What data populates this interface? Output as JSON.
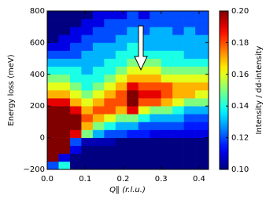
{
  "chart_data": {
    "type": "heatmap",
    "xlabel": "Q∥ (r.l.u.)",
    "ylabel": "Energy loss (meV)",
    "colorbar_label": "Intensity / dd-intensity",
    "colormap": "jet",
    "xlim": [
      0,
      0.425
    ],
    "ylim": [
      -200,
      800
    ],
    "xticks": [
      {
        "value": 0,
        "label": "0.0"
      },
      0.1,
      0.2,
      0.3,
      0.4
    ],
    "yticks": [
      {
        "value": -200,
        "label": "−200"
      },
      0,
      200,
      400,
      600,
      800
    ],
    "clim": [
      0.1,
      0.2
    ],
    "cticks": [
      {
        "value": 0.1,
        "label": "0.10"
      },
      0.12,
      0.14,
      0.16,
      0.18,
      {
        "value": 0.2,
        "label": "0.20"
      }
    ],
    "x_edges": [
      0,
      0.03,
      0.06,
      0.09,
      0.12,
      0.15,
      0.18,
      0.21,
      0.24,
      0.27,
      0.3,
      0.33,
      0.36,
      0.39,
      0.425
    ],
    "y_edges": [
      -200,
      -150,
      -100,
      -50,
      0,
      50,
      100,
      150,
      200,
      250,
      300,
      350,
      400,
      450,
      500,
      550,
      600,
      650,
      700,
      750,
      800
    ],
    "z": [
      [
        0.12,
        0.14,
        0.1,
        0.1,
        0.1,
        0.1,
        0.1,
        0.1,
        0.1,
        0.1,
        0.1,
        0.1,
        0.1,
        0.1
      ],
      [
        0.2,
        0.11,
        0.1,
        0.1,
        0.1,
        0.1,
        0.1,
        0.1,
        0.1,
        0.1,
        0.1,
        0.1,
        0.1,
        0.1
      ],
      [
        0.2,
        0.2,
        0.11,
        0.1,
        0.1,
        0.1,
        0.1,
        0.1,
        0.1,
        0.1,
        0.1,
        0.1,
        0.1,
        0.1
      ],
      [
        0.2,
        0.2,
        0.12,
        0.105,
        0.105,
        0.105,
        0.1,
        0.1,
        0.1,
        0.1,
        0.1,
        0.1,
        0.1,
        0.1
      ],
      [
        0.2,
        0.2,
        0.19,
        0.15,
        0.13,
        0.12,
        0.12,
        0.115,
        0.115,
        0.11,
        0.11,
        0.11,
        0.11,
        0.11
      ],
      [
        0.2,
        0.2,
        0.2,
        0.17,
        0.15,
        0.14,
        0.13,
        0.13,
        0.12,
        0.12,
        0.12,
        0.12,
        0.115,
        0.115
      ],
      [
        0.2,
        0.2,
        0.2,
        0.18,
        0.17,
        0.16,
        0.15,
        0.15,
        0.14,
        0.13,
        0.13,
        0.13,
        0.12,
        0.12
      ],
      [
        0.2,
        0.2,
        0.19,
        0.17,
        0.18,
        0.18,
        0.17,
        0.19,
        0.16,
        0.15,
        0.15,
        0.14,
        0.13,
        0.13
      ],
      [
        0.19,
        0.19,
        0.17,
        0.16,
        0.17,
        0.18,
        0.18,
        0.2,
        0.18,
        0.18,
        0.17,
        0.16,
        0.15,
        0.15
      ],
      [
        0.17,
        0.17,
        0.16,
        0.15,
        0.16,
        0.17,
        0.18,
        0.2,
        0.19,
        0.19,
        0.18,
        0.17,
        0.17,
        0.16
      ],
      [
        0.16,
        0.16,
        0.15,
        0.14,
        0.15,
        0.16,
        0.17,
        0.19,
        0.18,
        0.18,
        0.18,
        0.17,
        0.17,
        0.17
      ],
      [
        0.15,
        0.15,
        0.14,
        0.14,
        0.14,
        0.15,
        0.16,
        0.17,
        0.17,
        0.17,
        0.16,
        0.16,
        0.16,
        0.16
      ],
      [
        0.14,
        0.14,
        0.14,
        0.13,
        0.14,
        0.14,
        0.15,
        0.16,
        0.16,
        0.16,
        0.15,
        0.15,
        0.15,
        0.15
      ],
      [
        0.13,
        0.13,
        0.13,
        0.13,
        0.13,
        0.14,
        0.14,
        0.15,
        0.15,
        0.15,
        0.14,
        0.14,
        0.14,
        0.14
      ],
      [
        0.12,
        0.12,
        0.12,
        0.13,
        0.13,
        0.13,
        0.14,
        0.14,
        0.14,
        0.14,
        0.14,
        0.14,
        0.13,
        0.13
      ],
      [
        0.11,
        0.11,
        0.12,
        0.12,
        0.13,
        0.13,
        0.13,
        0.14,
        0.13,
        0.13,
        0.13,
        0.13,
        0.13,
        0.13
      ],
      [
        0.1,
        0.11,
        0.11,
        0.12,
        0.12,
        0.12,
        0.13,
        0.13,
        0.13,
        0.13,
        0.13,
        0.13,
        0.13,
        0.13
      ],
      [
        0.1,
        0.1,
        0.11,
        0.11,
        0.12,
        0.12,
        0.12,
        0.13,
        0.12,
        0.13,
        0.13,
        0.12,
        0.13,
        0.12
      ],
      [
        0.1,
        0.1,
        0.1,
        0.11,
        0.11,
        0.12,
        0.12,
        0.12,
        0.12,
        0.12,
        0.12,
        0.12,
        0.12,
        0.12
      ],
      [
        0.1,
        0.1,
        0.1,
        0.1,
        0.11,
        0.11,
        0.11,
        0.12,
        0.11,
        0.12,
        0.12,
        0.12,
        0.12,
        0.12
      ]
    ]
  }
}
